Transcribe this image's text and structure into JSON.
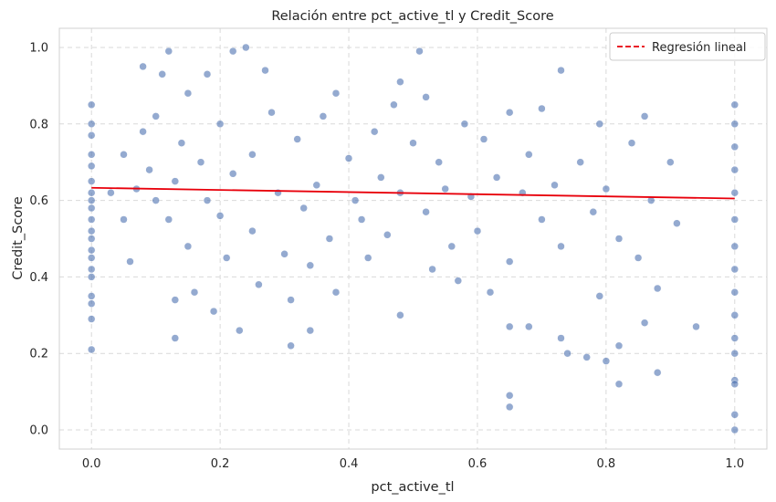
{
  "chart_data": {
    "type": "scatter",
    "title": "Relación entre pct_active_tl y Credit_Score",
    "xlabel": "pct_active_tl",
    "ylabel": "Credit_Score",
    "xlim": [
      -0.05,
      1.05
    ],
    "ylim": [
      -0.05,
      1.05
    ],
    "xticks": [
      0.0,
      0.2,
      0.4,
      0.6,
      0.8,
      1.0
    ],
    "yticks": [
      0.0,
      0.2,
      0.4,
      0.6,
      0.8,
      1.0
    ],
    "xtick_labels": [
      "0.0",
      "0.2",
      "0.4",
      "0.6",
      "0.8",
      "1.0"
    ],
    "ytick_labels": [
      "0.0",
      "0.2",
      "0.4",
      "0.6",
      "0.8",
      "1.0"
    ],
    "grid": true,
    "legend_position": "top-right",
    "point_color": "#4c72b0",
    "series": [
      {
        "values": [
          [
            0.0,
            0.85
          ],
          [
            0.0,
            0.8
          ],
          [
            0.0,
            0.72
          ],
          [
            0.0,
            0.65
          ],
          [
            0.0,
            0.6
          ],
          [
            0.0,
            0.55
          ],
          [
            0.0,
            0.5
          ],
          [
            0.0,
            0.45
          ],
          [
            0.0,
            0.4
          ],
          [
            0.0,
            0.35
          ],
          [
            0.0,
            0.33
          ],
          [
            0.0,
            0.29
          ],
          [
            0.0,
            0.21
          ],
          [
            0.0,
            0.77
          ],
          [
            0.0,
            0.69
          ],
          [
            0.0,
            0.62
          ],
          [
            0.0,
            0.58
          ],
          [
            0.0,
            0.52
          ],
          [
            0.0,
            0.47
          ],
          [
            0.0,
            0.42
          ],
          [
            0.03,
            0.62
          ],
          [
            0.05,
            0.72
          ],
          [
            0.05,
            0.55
          ],
          [
            0.06,
            0.44
          ],
          [
            0.07,
            0.63
          ],
          [
            0.08,
            0.78
          ],
          [
            0.08,
            0.95
          ],
          [
            0.09,
            0.68
          ],
          [
            0.1,
            0.6
          ],
          [
            0.1,
            0.82
          ],
          [
            0.11,
            0.93
          ],
          [
            0.12,
            0.99
          ],
          [
            0.12,
            0.55
          ],
          [
            0.13,
            0.65
          ],
          [
            0.13,
            0.34
          ],
          [
            0.13,
            0.24
          ],
          [
            0.14,
            0.75
          ],
          [
            0.15,
            0.88
          ],
          [
            0.15,
            0.48
          ],
          [
            0.16,
            0.36
          ],
          [
            0.17,
            0.7
          ],
          [
            0.18,
            0.6
          ],
          [
            0.18,
            0.93
          ],
          [
            0.19,
            0.31
          ],
          [
            0.2,
            0.8
          ],
          [
            0.2,
            0.56
          ],
          [
            0.21,
            0.45
          ],
          [
            0.22,
            0.99
          ],
          [
            0.22,
            0.67
          ],
          [
            0.23,
            0.26
          ],
          [
            0.24,
            1.0
          ],
          [
            0.25,
            0.72
          ],
          [
            0.25,
            0.52
          ],
          [
            0.26,
            0.38
          ],
          [
            0.27,
            0.94
          ],
          [
            0.28,
            0.83
          ],
          [
            0.29,
            0.62
          ],
          [
            0.3,
            0.46
          ],
          [
            0.31,
            0.22
          ],
          [
            0.31,
            0.34
          ],
          [
            0.32,
            0.76
          ],
          [
            0.33,
            0.58
          ],
          [
            0.34,
            0.43
          ],
          [
            0.34,
            0.26
          ],
          [
            0.35,
            0.64
          ],
          [
            0.36,
            0.82
          ],
          [
            0.37,
            0.5
          ],
          [
            0.38,
            0.88
          ],
          [
            0.38,
            0.36
          ],
          [
            0.4,
            0.71
          ],
          [
            0.41,
            0.6
          ],
          [
            0.42,
            0.55
          ],
          [
            0.43,
            0.45
          ],
          [
            0.44,
            0.78
          ],
          [
            0.45,
            0.66
          ],
          [
            0.46,
            0.51
          ],
          [
            0.47,
            0.85
          ],
          [
            0.48,
            0.91
          ],
          [
            0.48,
            0.62
          ],
          [
            0.48,
            0.3
          ],
          [
            0.5,
            0.75
          ],
          [
            0.51,
            0.99
          ],
          [
            0.52,
            0.57
          ],
          [
            0.52,
            0.87
          ],
          [
            0.53,
            0.42
          ],
          [
            0.54,
            0.7
          ],
          [
            0.55,
            0.63
          ],
          [
            0.56,
            0.48
          ],
          [
            0.57,
            0.39
          ],
          [
            0.58,
            0.8
          ],
          [
            0.59,
            0.61
          ],
          [
            0.6,
            0.52
          ],
          [
            0.61,
            0.76
          ],
          [
            0.62,
            0.36
          ],
          [
            0.63,
            0.66
          ],
          [
            0.65,
            0.83
          ],
          [
            0.65,
            0.44
          ],
          [
            0.65,
            0.27
          ],
          [
            0.65,
            0.09
          ],
          [
            0.65,
            0.06
          ],
          [
            0.67,
            0.62
          ],
          [
            0.68,
            0.72
          ],
          [
            0.68,
            0.27
          ],
          [
            0.7,
            0.55
          ],
          [
            0.7,
            0.84
          ],
          [
            0.72,
            0.64
          ],
          [
            0.73,
            0.94
          ],
          [
            0.73,
            0.48
          ],
          [
            0.73,
            0.24
          ],
          [
            0.74,
            0.2
          ],
          [
            0.76,
            0.7
          ],
          [
            0.77,
            0.19
          ],
          [
            0.78,
            0.57
          ],
          [
            0.79,
            0.8
          ],
          [
            0.79,
            0.35
          ],
          [
            0.8,
            0.18
          ],
          [
            0.8,
            0.63
          ],
          [
            0.82,
            0.5
          ],
          [
            0.82,
            0.22
          ],
          [
            0.82,
            0.12
          ],
          [
            0.84,
            0.75
          ],
          [
            0.85,
            0.45
          ],
          [
            0.86,
            0.82
          ],
          [
            0.86,
            0.28
          ],
          [
            0.87,
            0.6
          ],
          [
            0.88,
            0.15
          ],
          [
            0.88,
            0.37
          ],
          [
            0.9,
            0.7
          ],
          [
            0.91,
            0.54
          ],
          [
            0.94,
            0.27
          ],
          [
            1.0,
            0.85
          ],
          [
            1.0,
            0.8
          ],
          [
            1.0,
            0.74
          ],
          [
            1.0,
            0.68
          ],
          [
            1.0,
            0.62
          ],
          [
            1.0,
            0.55
          ],
          [
            1.0,
            0.48
          ],
          [
            1.0,
            0.42
          ],
          [
            1.0,
            0.36
          ],
          [
            1.0,
            0.3
          ],
          [
            1.0,
            0.24
          ],
          [
            1.0,
            0.2
          ],
          [
            1.0,
            0.13
          ],
          [
            1.0,
            0.12
          ],
          [
            1.0,
            0.04
          ],
          [
            1.0,
            0.0
          ]
        ]
      },
      {
        "name": "Regresión lineal",
        "type": "line",
        "color": "#e8000b",
        "values": [
          [
            0.0,
            0.633
          ],
          [
            1.0,
            0.605
          ]
        ]
      }
    ]
  }
}
